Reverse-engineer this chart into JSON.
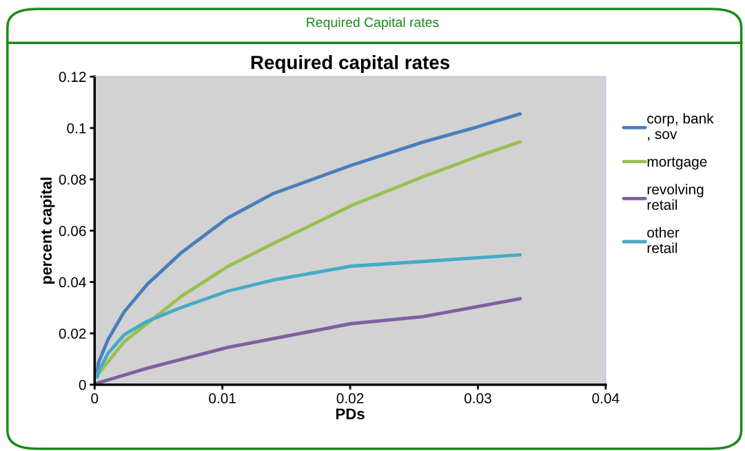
{
  "chart_data": {
    "type": "line",
    "title": "Required capital rates",
    "xlabel": "PDs",
    "ylabel": "percent capital",
    "annotations": [
      "Required Capital rates"
    ],
    "xlim": [
      0,
      0.04
    ],
    "xticks": [
      0,
      0.01,
      0.02,
      0.03,
      0.04
    ],
    "ylim": [
      0,
      0.12
    ],
    "yticks": [
      0,
      0.02,
      0.04,
      0.06,
      0.08,
      0.1,
      0.12
    ],
    "grid": false,
    "legend": "right",
    "marker": "none",
    "line_style": "solid",
    "series": [
      {
        "name": "corp, bank\n, sov",
        "color": "#4a7ebb",
        "x": [
          0.0002,
          0.0003,
          0.00106,
          0.0023,
          0.0041,
          0.0068,
          0.0104,
          0.014,
          0.0201,
          0.0257,
          0.03,
          0.0333
        ],
        "values": [
          0.005,
          0.0086,
          0.0177,
          0.0283,
          0.039,
          0.0515,
          0.0649,
          0.0745,
          0.0855,
          0.0945,
          0.1005,
          0.1055
        ]
      },
      {
        "name": "mortgage",
        "color": "#98c04f",
        "x": [
          0.0002,
          0.0003,
          0.0023,
          0.0041,
          0.0068,
          0.0104,
          0.014,
          0.0201,
          0.0257,
          0.03,
          0.0333
        ],
        "values": [
          0.003,
          0.0043,
          0.0167,
          0.0238,
          0.0345,
          0.046,
          0.055,
          0.0698,
          0.081,
          0.089,
          0.0946
        ]
      },
      {
        "name": "revolving\nretail",
        "color": "#7d60a0",
        "x": [
          0.0002,
          0.0041,
          0.0104,
          0.0201,
          0.0257,
          0.0333
        ],
        "values": [
          0.0006,
          0.0064,
          0.0145,
          0.0238,
          0.0265,
          0.0335
        ]
      },
      {
        "name": "other\nretail",
        "color": "#46aac5",
        "x": [
          0.0002,
          0.0003,
          0.00106,
          0.0023,
          0.0041,
          0.0068,
          0.0104,
          0.014,
          0.0201,
          0.0257,
          0.0333
        ],
        "values": [
          0.003,
          0.0051,
          0.0123,
          0.0194,
          0.0247,
          0.0301,
          0.0364,
          0.0408,
          0.0462,
          0.048,
          0.0506
        ]
      }
    ]
  }
}
